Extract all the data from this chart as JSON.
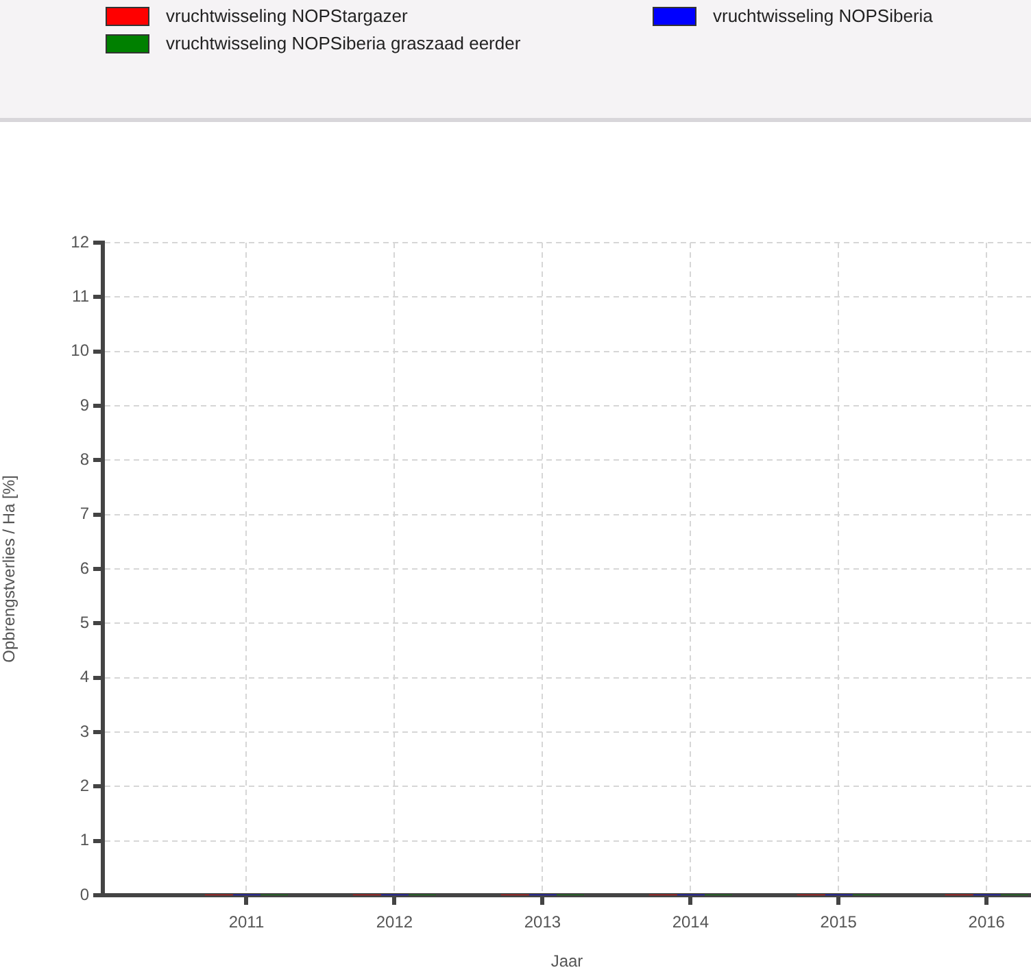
{
  "chart_data": {
    "type": "bar",
    "xlabel": "Jaar",
    "ylabel": "Opbrengstverlies / Ha [%]",
    "x": [
      2011,
      2012,
      2013,
      2014,
      2015,
      2016
    ],
    "series": [
      {
        "name": "vruchtwisseling NOPStargazer",
        "color": "#ff0000",
        "values": [
          0,
          0,
          0,
          0,
          0,
          0
        ]
      },
      {
        "name": "vruchtwisseling NOPSiberia",
        "color": "#0000ff",
        "values": [
          0,
          0,
          0,
          0,
          0,
          0
        ]
      },
      {
        "name": "vruchtwisseling NOPSiberia graszaad eerder",
        "color": "#008000",
        "values": [
          0,
          0,
          0,
          0,
          0,
          0
        ]
      }
    ],
    "xlim": [
      2010.03,
      2016.3
    ],
    "xticks": [
      2011,
      2012,
      2013,
      2014,
      2015,
      2016
    ],
    "ylim": [
      0,
      12
    ],
    "yticks": [
      0,
      1,
      2,
      3,
      4,
      5,
      6,
      7,
      8,
      9,
      10,
      11,
      12
    ],
    "grid": true,
    "legend": "top"
  }
}
